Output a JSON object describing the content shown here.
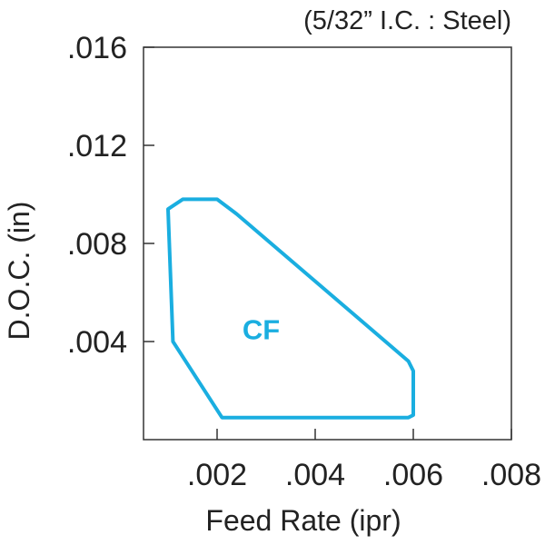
{
  "chart_data": {
    "type": "area",
    "subtitle": "(5/32” I.C. : Steel)",
    "xlabel": "Feed Rate (ipr)",
    "ylabel": "D.O.C. (in)",
    "xlim": [
      0.0005,
      0.008
    ],
    "ylim": [
      0.0,
      0.016
    ],
    "x_ticks": [
      ".002",
      ".004",
      ".006",
      ".008"
    ],
    "x_tick_values": [
      0.002,
      0.004,
      0.006,
      0.008
    ],
    "y_ticks": [
      ".004",
      ".008",
      ".012",
      ".016"
    ],
    "y_tick_values": [
      0.004,
      0.008,
      0.012,
      0.016
    ],
    "grid": false,
    "series": [
      {
        "name": "CF",
        "color": "#1aaee0",
        "points": [
          [
            0.0013,
            0.0098
          ],
          [
            0.002,
            0.0098
          ],
          [
            0.0024,
            0.0092
          ],
          [
            0.0059,
            0.0032
          ],
          [
            0.006,
            0.0028
          ],
          [
            0.006,
            0.001
          ],
          [
            0.0059,
            0.0009
          ],
          [
            0.0021,
            0.0009
          ],
          [
            0.0011,
            0.004
          ],
          [
            0.001,
            0.0094
          ]
        ],
        "label_position": [
          0.0029,
          0.0045
        ]
      }
    ]
  }
}
